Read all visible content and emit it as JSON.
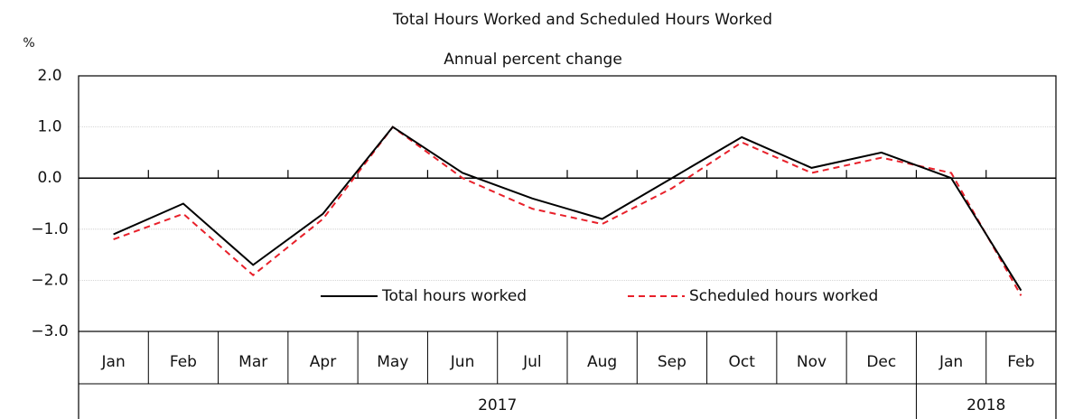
{
  "chart_data": {
    "type": "line",
    "title": "Total Hours Worked and Scheduled Hours Worked",
    "subtitle": "Annual percent change",
    "y_unit": "%",
    "categories": [
      "Jan",
      "Feb",
      "Mar",
      "Apr",
      "May",
      "Jun",
      "Jul",
      "Aug",
      "Sep",
      "Oct",
      "Nov",
      "Dec",
      "Jan",
      "Feb"
    ],
    "year_groups": [
      {
        "label": "2017",
        "count": 12
      },
      {
        "label": "2018",
        "count": 2
      }
    ],
    "series": [
      {
        "name": "Total hours worked",
        "color": "#000000",
        "dash": false,
        "values": [
          -1.1,
          -0.5,
          -1.7,
          -0.7,
          1.0,
          0.1,
          -0.4,
          -0.8,
          0.0,
          0.8,
          0.2,
          0.5,
          0.0,
          -2.2
        ]
      },
      {
        "name": "Scheduled hours worked",
        "color": "#e8202a",
        "dash": true,
        "values": [
          -1.2,
          -0.7,
          -1.9,
          -0.8,
          1.0,
          0.0,
          -0.6,
          -0.9,
          -0.2,
          0.7,
          0.1,
          0.4,
          0.1,
          -2.3
        ]
      }
    ],
    "ylim": [
      -3,
      2
    ],
    "yticks": [
      {
        "value": 2,
        "label": "2.0"
      },
      {
        "value": 1,
        "label": "1.0"
      },
      {
        "value": 0,
        "label": "0.0"
      },
      {
        "value": -1,
        "label": "−1.0"
      },
      {
        "value": -2,
        "label": "−2.0"
      },
      {
        "value": -3,
        "label": "−3.0"
      }
    ],
    "grid": true
  }
}
